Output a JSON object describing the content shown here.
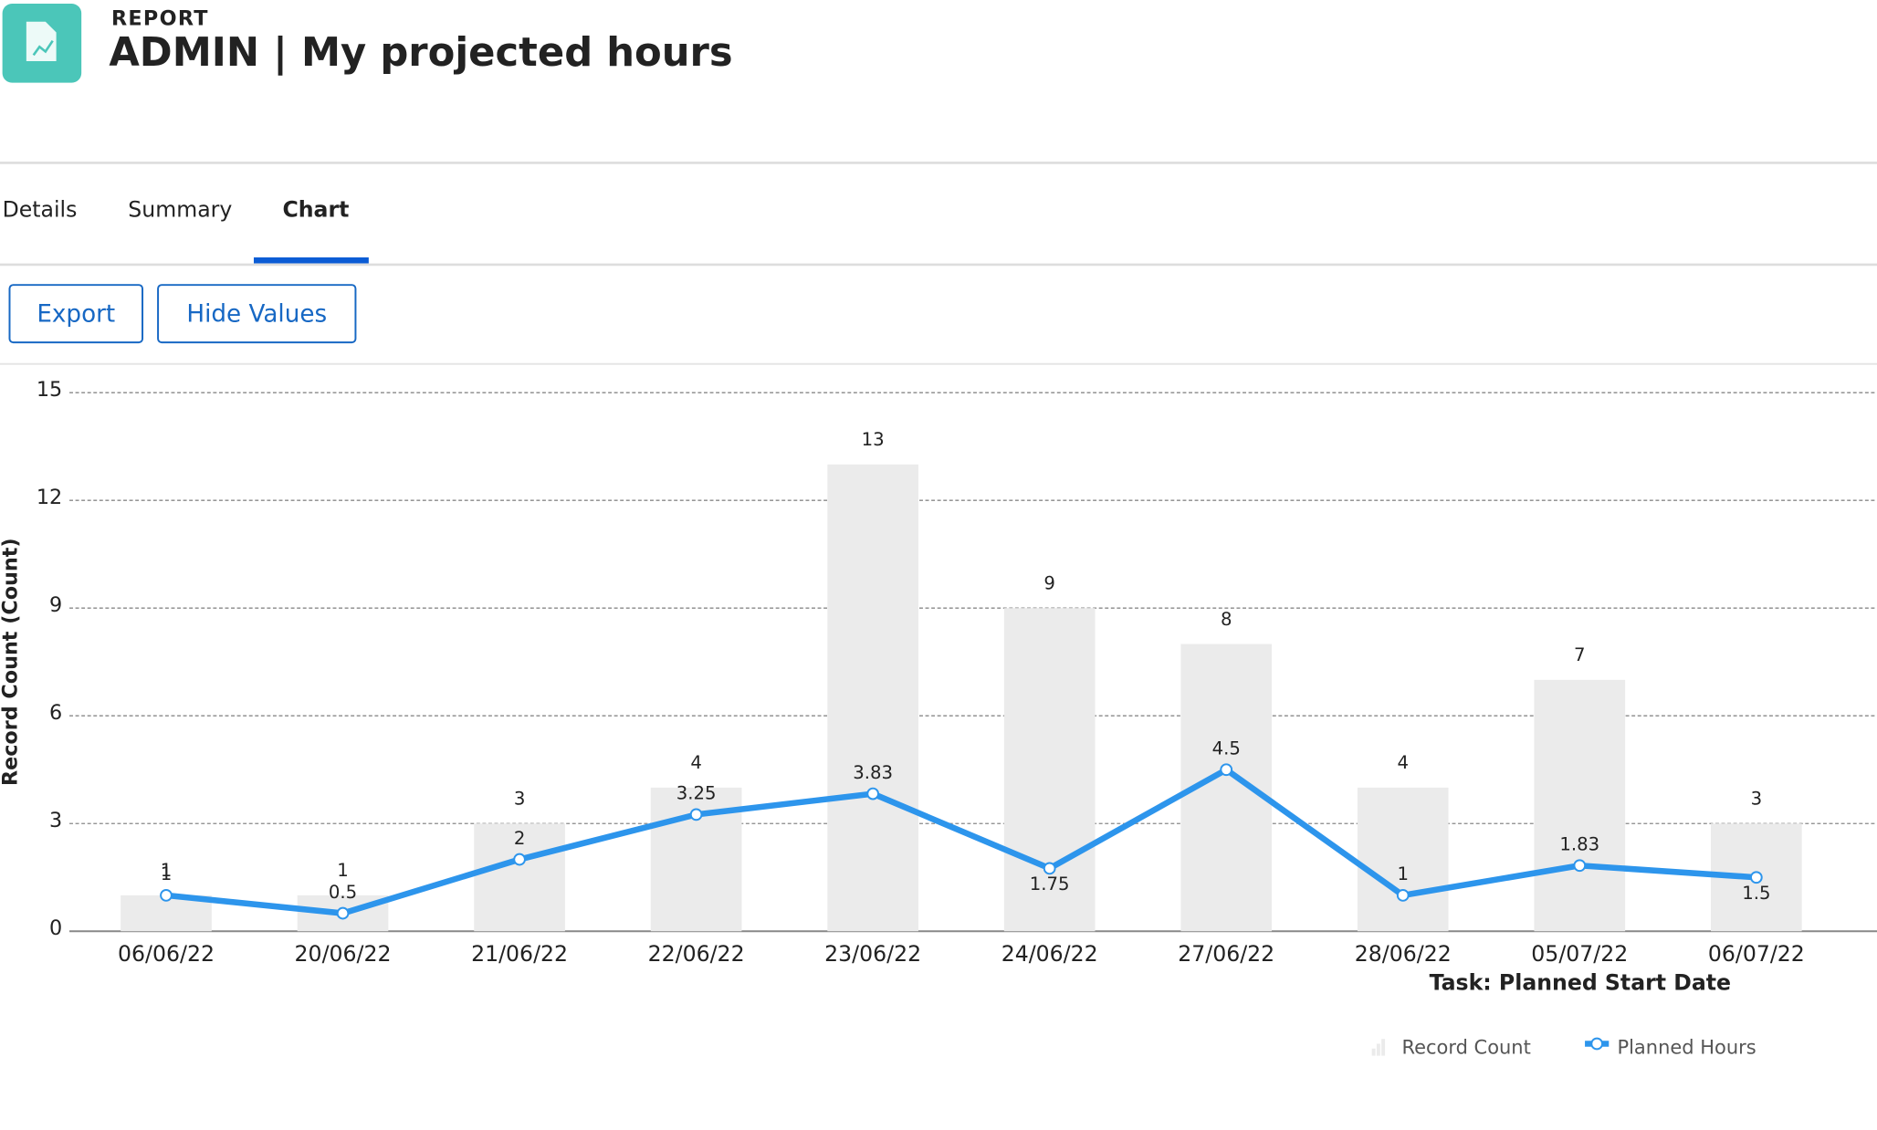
{
  "header": {
    "eyebrow": "REPORT",
    "title": "ADMIN | My projected hours"
  },
  "tabs": [
    "Details",
    "Summary",
    "Chart"
  ],
  "buttons": [
    "Export",
    "Hide Values"
  ],
  "chart_data": {
    "type": "combo",
    "categories": [
      "06/06/22",
      "20/06/22",
      "21/06/22",
      "22/06/22",
      "23/06/22",
      "24/06/22",
      "27/06/22",
      "28/06/22",
      "05/07/22",
      "06/07/22"
    ],
    "series": [
      {
        "name": "Record Count",
        "type": "bar",
        "color": "#ebebeb",
        "values": [
          1,
          1,
          3,
          4,
          13,
          9,
          8,
          4,
          7,
          3
        ]
      },
      {
        "name": "Planned Hours",
        "type": "line",
        "color": "#2d95ec",
        "values": [
          1,
          0.5,
          2,
          3.25,
          3.83,
          1.75,
          4.5,
          1,
          1.83,
          1.5
        ]
      }
    ],
    "y_label": "Record Count (Count)",
    "x_label": "Task: Planned Start Date",
    "ylim": [
      0,
      15
    ],
    "yticks": [
      0,
      3,
      6,
      9,
      12,
      15
    ],
    "grid": true
  }
}
